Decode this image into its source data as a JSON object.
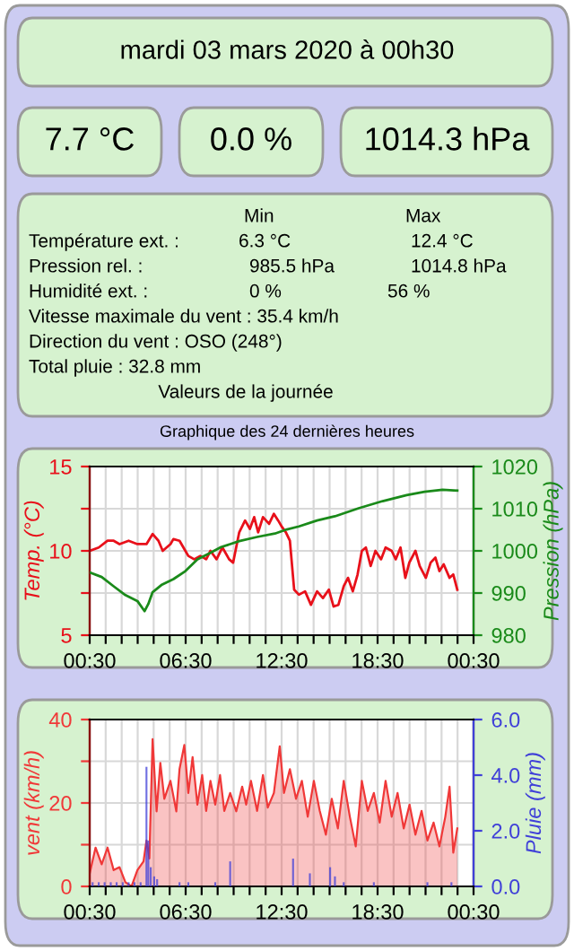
{
  "chart_data": [
    {
      "type": "other",
      "title": "mardi 03 mars 2020 à 00h30",
      "annotations": [
        "7.7 °C",
        "0.0 %",
        "1014.3 hPa",
        "Min",
        "Max",
        "Température ext. :",
        "6.3 °C",
        "12.4 °C",
        "Pression rel. :",
        "985.5 hPa",
        "1014.8 hPa",
        "Humidité ext. :",
        "0 %",
        "56 %",
        "Vitesse maximale du vent : 35.4 km/h",
        "Direction du vent : OSO (248°)",
        "Total pluie : 32.8 mm",
        "Valeurs de la journée"
      ]
    },
    {
      "type": "line",
      "title": "Graphique des 24 dernières heures",
      "ylabel": "Temp. (°C)",
      "y2label": "Pression (hPa)",
      "xlim": [
        "2020-03-02T00:30",
        "2020-03-03T00:30"
      ],
      "xticks": [
        {
          "value": "2020-03-02T00:30",
          "label": "00:30"
        },
        {
          "value": "2020-03-02T01:30",
          "label": null
        },
        {
          "value": "2020-03-02T02:30",
          "label": null
        },
        {
          "value": "2020-03-02T03:30",
          "label": null
        },
        {
          "value": "2020-03-02T04:30",
          "label": null
        },
        {
          "value": "2020-03-02T05:30",
          "label": null
        },
        {
          "value": "2020-03-02T06:30",
          "label": "06:30"
        },
        {
          "value": "2020-03-02T07:30",
          "label": null
        },
        {
          "value": "2020-03-02T08:30",
          "label": null
        },
        {
          "value": "2020-03-02T09:30",
          "label": null
        },
        {
          "value": "2020-03-02T10:30",
          "label": null
        },
        {
          "value": "2020-03-02T11:30",
          "label": null
        },
        {
          "value": "2020-03-02T12:30",
          "label": "12:30"
        },
        {
          "value": "2020-03-02T13:30",
          "label": null
        },
        {
          "value": "2020-03-02T14:30",
          "label": null
        },
        {
          "value": "2020-03-02T15:30",
          "label": null
        },
        {
          "value": "2020-03-02T16:30",
          "label": null
        },
        {
          "value": "2020-03-02T17:30",
          "label": null
        },
        {
          "value": "2020-03-02T18:30",
          "label": "18:30"
        },
        {
          "value": "2020-03-02T19:30",
          "label": null
        },
        {
          "value": "2020-03-02T20:30",
          "label": null
        },
        {
          "value": "2020-03-02T21:30",
          "label": null
        },
        {
          "value": "2020-03-02T22:30",
          "label": null
        },
        {
          "value": "2020-03-02T23:30",
          "label": null
        },
        {
          "value": "2020-03-03T00:30",
          "label": "00:30"
        }
      ],
      "ylim": [
        5,
        15
      ],
      "yticks": [
        5,
        {
          "value": 7.5,
          "label": null
        },
        10,
        {
          "value": 12.5,
          "label": null
        },
        15
      ],
      "y2lim": [
        980,
        1020
      ],
      "y2ticks": [
        980,
        990,
        1000,
        1010,
        1020
      ],
      "grid": true,
      "series": [
        {
          "color": "#e8101a",
          "x": [
            "2020-03-02T00:30",
            "2020-03-02T01:04",
            "2020-03-02T01:37",
            "2020-03-02T02:00",
            "2020-03-02T02:22",
            "2020-03-02T02:56",
            "2020-03-02T03:29",
            "2020-03-02T04:03",
            "2020-03-02T04:26",
            "2020-03-02T04:48",
            "2020-03-02T05:04",
            "2020-03-02T05:33",
            "2020-03-02T05:44",
            "2020-03-02T06:07",
            "2020-03-02T06:29",
            "2020-03-02T06:40",
            "2020-03-02T07:02",
            "2020-03-02T07:25",
            "2020-03-02T07:47",
            "2020-03-02T08:03",
            "2020-03-02T08:26",
            "2020-03-02T08:48",
            "2020-03-02T09:13",
            "2020-03-02T09:28",
            "2020-03-02T09:51",
            "2020-03-02T10:13",
            "2020-03-02T10:31",
            "2020-03-02T10:47",
            "2020-03-02T11:02",
            "2020-03-02T11:20",
            "2020-03-02T11:43",
            "2020-03-02T12:01",
            "2020-03-02T12:17",
            "2020-03-02T12:32",
            "2020-03-02T12:46",
            "2020-03-02T13:01",
            "2020-03-02T13:17",
            "2020-03-02T13:35",
            "2020-03-02T13:58",
            "2020-03-02T14:20",
            "2020-03-02T14:43",
            "2020-03-02T15:05",
            "2020-03-02T15:27",
            "2020-03-02T15:45",
            "2020-03-02T16:03",
            "2020-03-02T16:23",
            "2020-03-02T16:39",
            "2020-03-02T16:57",
            "2020-03-02T17:15",
            "2020-03-02T17:31",
            "2020-03-02T17:46",
            "2020-03-02T18:04",
            "2020-03-02T18:22",
            "2020-03-02T18:43",
            "2020-03-02T19:00",
            "2020-03-02T19:23",
            "2020-03-02T19:38",
            "2020-03-02T19:56",
            "2020-03-02T20:14",
            "2020-03-02T20:29",
            "2020-03-02T20:52",
            "2020-03-02T21:08",
            "2020-03-02T21:31",
            "2020-03-02T21:49",
            "2020-03-02T22:07",
            "2020-03-02T22:22",
            "2020-03-02T22:38",
            "2020-03-02T23:00",
            "2020-03-02T23:14",
            "2020-03-02T23:29"
          ],
          "values": [
            10.0,
            10.2,
            10.6,
            10.6,
            10.4,
            10.6,
            10.4,
            10.4,
            11.0,
            10.6,
            10.0,
            10.4,
            10.7,
            10.6,
            10.0,
            9.7,
            9.5,
            9.7,
            9.5,
            10.0,
            9.5,
            10.2,
            9.5,
            9.3,
            11.1,
            11.8,
            11.3,
            12.0,
            11.1,
            12.0,
            11.6,
            12.2,
            11.8,
            11.4,
            11.1,
            10.6,
            7.7,
            7.4,
            7.6,
            6.8,
            7.6,
            7.2,
            7.7,
            6.7,
            6.8,
            7.9,
            8.4,
            7.6,
            8.6,
            10.0,
            10.2,
            9.1,
            10.0,
            9.5,
            10.2,
            10.0,
            9.5,
            10.2,
            8.4,
            9.3,
            10.0,
            9.1,
            8.4,
            9.3,
            9.6,
            8.8,
            9.2,
            8.4,
            8.6,
            7.7
          ]
        },
        {
          "color": "#1a8a1a",
          "axis": "y2",
          "x": [
            "2020-03-02T00:30",
            "2020-03-02T01:15",
            "2020-03-02T02:00",
            "2020-03-02T02:44",
            "2020-03-02T03:29",
            "2020-03-02T03:56",
            "2020-03-02T04:10",
            "2020-03-02T04:26",
            "2020-03-02T04:59",
            "2020-03-02T05:44",
            "2020-03-02T06:29",
            "2020-03-02T07:14",
            "2020-03-02T07:59",
            "2020-03-02T08:43",
            "2020-03-02T09:51",
            "2020-03-02T10:58",
            "2020-03-02T12:05",
            "2020-03-02T12:50",
            "2020-03-02T13:35",
            "2020-03-02T14:43",
            "2020-03-02T15:50",
            "2020-03-02T17:19",
            "2020-03-02T18:49",
            "2020-03-02T20:19",
            "2020-03-02T21:26",
            "2020-03-02T22:34",
            "2020-03-02T23:29"
          ],
          "values": [
            994.9,
            993.8,
            991.6,
            989.5,
            988.1,
            985.7,
            987.4,
            990.2,
            991.9,
            993.3,
            995.2,
            998.0,
            999.4,
            1000.9,
            1002.3,
            1003.3,
            1004.1,
            1005.1,
            1005.8,
            1007.2,
            1008.2,
            1010.1,
            1011.8,
            1013.2,
            1014.0,
            1014.5,
            1014.3
          ]
        }
      ]
    },
    {
      "type": "area",
      "ylabel": "vent (km/h)",
      "y2label": "Pluie (mm)",
      "xlim": [
        "2020-03-02T00:30",
        "2020-03-03T00:30"
      ],
      "xticks": [
        {
          "value": "2020-03-02T00:30",
          "label": "00:30"
        },
        {
          "value": "2020-03-02T01:30",
          "label": null
        },
        {
          "value": "2020-03-02T02:30",
          "label": null
        },
        {
          "value": "2020-03-02T03:30",
          "label": null
        },
        {
          "value": "2020-03-02T04:30",
          "label": null
        },
        {
          "value": "2020-03-02T05:30",
          "label": null
        },
        {
          "value": "2020-03-02T06:30",
          "label": "06:30"
        },
        {
          "value": "2020-03-02T07:30",
          "label": null
        },
        {
          "value": "2020-03-02T08:30",
          "label": null
        },
        {
          "value": "2020-03-02T09:30",
          "label": null
        },
        {
          "value": "2020-03-02T10:30",
          "label": null
        },
        {
          "value": "2020-03-02T11:30",
          "label": null
        },
        {
          "value": "2020-03-02T12:30",
          "label": "12:30"
        },
        {
          "value": "2020-03-02T13:30",
          "label": null
        },
        {
          "value": "2020-03-02T14:30",
          "label": null
        },
        {
          "value": "2020-03-02T15:30",
          "label": null
        },
        {
          "value": "2020-03-02T16:30",
          "label": null
        },
        {
          "value": "2020-03-02T17:30",
          "label": null
        },
        {
          "value": "2020-03-02T18:30",
          "label": "18:30"
        },
        {
          "value": "2020-03-02T19:30",
          "label": null
        },
        {
          "value": "2020-03-02T20:30",
          "label": null
        },
        {
          "value": "2020-03-02T21:30",
          "label": null
        },
        {
          "value": "2020-03-02T22:30",
          "label": null
        },
        {
          "value": "2020-03-02T23:30",
          "label": null
        },
        {
          "value": "2020-03-03T00:30",
          "label": "00:30"
        }
      ],
      "ylim": [
        0,
        40
      ],
      "yticks": [
        0,
        {
          "value": 10,
          "label": null
        },
        20,
        {
          "value": 30,
          "label": null
        },
        40
      ],
      "y2lim": [
        0,
        6
      ],
      "y2ticks": [
        {
          "value": 0,
          "label": "0.0"
        },
        {
          "value": 2,
          "label": "2.0"
        },
        {
          "value": 4,
          "label": "4.0"
        },
        {
          "value": 6,
          "label": "6.0"
        }
      ],
      "grid": true,
      "series": [
        {
          "color": "#f03838",
          "x": [
            "2020-03-02T00:30",
            "2020-03-02T00:52",
            "2020-03-02T01:15",
            "2020-03-02T01:37",
            "2020-03-02T02:00",
            "2020-03-02T02:22",
            "2020-03-02T02:44",
            "2020-03-02T03:07",
            "2020-03-02T03:29",
            "2020-03-02T03:52",
            "2020-03-02T04:03",
            "2020-03-02T04:14",
            "2020-03-02T04:26",
            "2020-03-02T04:41",
            "2020-03-02T04:55",
            "2020-03-02T05:10",
            "2020-03-02T05:33",
            "2020-03-02T05:55",
            "2020-03-02T06:07",
            "2020-03-02T06:25",
            "2020-03-02T06:40",
            "2020-03-02T06:56",
            "2020-03-02T07:14",
            "2020-03-02T07:32",
            "2020-03-02T07:47",
            "2020-03-02T08:03",
            "2020-03-02T08:21",
            "2020-03-02T08:39",
            "2020-03-02T08:55",
            "2020-03-02T09:17",
            "2020-03-02T09:40",
            "2020-03-02T10:02",
            "2020-03-02T10:17",
            "2020-03-02T10:35",
            "2020-03-02T10:58",
            "2020-03-02T11:20",
            "2020-03-02T11:38",
            "2020-03-02T12:01",
            "2020-03-02T12:23",
            "2020-03-02T12:39",
            "2020-03-02T13:01",
            "2020-03-02T13:24",
            "2020-03-02T13:46",
            "2020-03-02T14:08",
            "2020-03-02T14:31",
            "2020-03-02T14:53",
            "2020-03-02T15:16",
            "2020-03-02T15:38",
            "2020-03-02T16:01",
            "2020-03-02T16:23",
            "2020-03-02T16:46",
            "2020-03-02T17:08",
            "2020-03-02T17:31",
            "2020-03-02T17:53",
            "2020-03-02T18:16",
            "2020-03-02T18:38",
            "2020-03-02T19:00",
            "2020-03-02T19:23",
            "2020-03-02T19:45",
            "2020-03-02T20:08",
            "2020-03-02T20:30",
            "2020-03-02T20:52",
            "2020-03-02T21:15",
            "2020-03-02T21:37",
            "2020-03-02T22:00",
            "2020-03-02T22:22",
            "2020-03-02T22:44",
            "2020-03-02T23:00",
            "2020-03-02T23:14",
            "2020-03-02T23:29"
          ],
          "values": [
            3.1,
            9.3,
            5.3,
            9.3,
            3.9,
            4.6,
            1.0,
            0.0,
            3.9,
            6.0,
            11.0,
            6.7,
            35.3,
            18.0,
            29.6,
            21.0,
            25.3,
            18.0,
            28.1,
            33.9,
            22.4,
            31.0,
            19.6,
            26.7,
            18.1,
            25.3,
            19.6,
            26.7,
            18.1,
            22.4,
            18.0,
            23.9,
            19.6,
            25.3,
            18.1,
            26.7,
            18.9,
            22.4,
            33.6,
            22.4,
            28.1,
            21.0,
            25.3,
            16.7,
            25.3,
            18.1,
            12.4,
            21.0,
            13.9,
            25.3,
            16.7,
            9.6,
            25.3,
            18.1,
            22.4,
            15.3,
            25.3,
            16.7,
            22.4,
            13.9,
            19.6,
            12.4,
            18.1,
            11.0,
            15.3,
            9.6,
            16.7,
            23.9,
            8.1,
            13.9
          ]
        },
        {
          "type": "bar",
          "axis": "y2",
          "color": "#4040d8",
          "x": [
            "2020-03-02T00:41",
            "2020-03-02T01:04",
            "2020-03-02T01:26",
            "2020-03-02T01:49",
            "2020-03-02T02:11",
            "2020-03-02T02:34",
            "2020-03-02T02:56",
            "2020-03-02T03:18",
            "2020-03-02T03:41",
            "2020-03-02T04:03",
            "2020-03-02T04:10",
            "2020-03-02T04:19",
            "2020-03-02T04:32",
            "2020-03-02T04:43",
            "2020-03-02T06:07",
            "2020-03-02T06:40",
            "2020-03-02T08:21",
            "2020-03-02T09:17",
            "2020-03-02T13:13",
            "2020-03-02T14:16",
            "2020-03-02T15:32",
            "2020-03-02T15:50",
            "2020-03-02T16:23",
            "2020-03-02T18:16",
            "2020-03-02T21:37",
            "2020-03-02T23:07"
          ],
          "values": [
            0.15,
            0.15,
            0.15,
            0.15,
            0.15,
            0.15,
            0.15,
            0.15,
            0.15,
            4.3,
            1.65,
            0.69,
            0.36,
            0.26,
            0.15,
            0.15,
            0.15,
            0.9,
            1.0,
            0.47,
            0.69,
            0.36,
            0.15,
            0.15,
            0.15,
            0.15
          ]
        }
      ]
    }
  ]
}
